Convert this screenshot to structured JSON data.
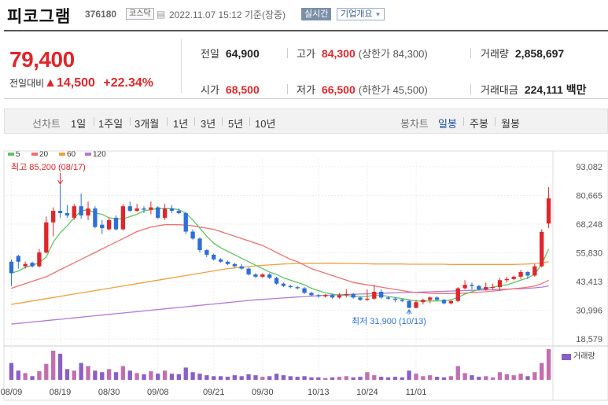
{
  "header": {
    "title": "피코그램",
    "code": "376180",
    "market": "코스닥",
    "datetime": "2022.11.07 15:12 기준(장중)",
    "realtime_btn": "실시간",
    "company_btn": "기업개요"
  },
  "summary": {
    "price": "79,400",
    "change_label": "전일대비",
    "change": "▲14,500",
    "change_pct": "+22.34%",
    "prev_close_label": "전일",
    "prev_close": "64,900",
    "high_label": "고가",
    "high": "84,300",
    "upper_limit": "(상한가 84,300)",
    "volume_label": "거래량",
    "volume": "2,858,697",
    "open_label": "시가",
    "open": "68,500",
    "low_label": "저가",
    "low": "66,500",
    "lower_limit": "(하한가 45,500)",
    "amount_label": "거래대금",
    "amount": "224,111 백만"
  },
  "periods": {
    "line_label": "선차트",
    "line_items": [
      "1일",
      "1주일",
      "3개월",
      "1년",
      "3년",
      "5년",
      "10년"
    ],
    "candle_label": "봉차트",
    "candle_items": [
      "일봉",
      "주봉",
      "월봉"
    ],
    "candle_selected": "일봉"
  },
  "colors": {
    "up": "#e0262b",
    "down": "#2f6fd6",
    "ma5": "#62c462",
    "ma20": "#f07070",
    "ma60": "#f0a040",
    "ma120": "#b07ad8"
  },
  "chart_data": {
    "type": "candlestick",
    "y_ticks": [
      "93,082",
      "80,665",
      "68,248",
      "55,830",
      "43,413",
      "30,996",
      "18,579"
    ],
    "ylim": [
      18579,
      93082
    ],
    "x_labels": [
      "08/09",
      "08/19",
      "08/30",
      "09/08",
      "09/21",
      "09/30",
      "10/13",
      "10/24",
      "11/01"
    ],
    "legend": [
      "5",
      "20",
      "60",
      "120"
    ],
    "volume_label": "거래량",
    "annotations": {
      "high": "최고 85,200 (08/17)",
      "low": "최저 31,900 (10/13)"
    },
    "candles": [
      [
        52000,
        47000,
        41500,
        53000
      ],
      [
        54500,
        52000,
        49000,
        55000
      ],
      [
        50000,
        51000,
        49000,
        52000
      ],
      [
        51500,
        50000,
        49500,
        52000
      ],
      [
        50000,
        56000,
        49500,
        57500
      ],
      [
        56000,
        69000,
        55500,
        71500
      ],
      [
        69000,
        74000,
        63000,
        75500
      ],
      [
        74000,
        73000,
        71000,
        85200
      ],
      [
        73000,
        72000,
        71000,
        76500
      ],
      [
        71000,
        76000,
        70000,
        77000
      ],
      [
        76000,
        72000,
        70500,
        81500
      ],
      [
        72000,
        75000,
        70000,
        78000
      ],
      [
        75000,
        67000,
        66500,
        76000
      ],
      [
        68000,
        66500,
        64000,
        70000
      ],
      [
        66000,
        70000,
        65500,
        71000
      ],
      [
        71000,
        66000,
        65500,
        72000
      ],
      [
        66000,
        76000,
        65500,
        77000
      ],
      [
        76000,
        74000,
        73500,
        78000
      ],
      [
        74000,
        75000,
        73500,
        77000
      ],
      [
        75000,
        74500,
        73000,
        76000
      ],
      [
        74500,
        75500,
        72500,
        78000
      ],
      [
        75500,
        71000,
        70500,
        76000
      ],
      [
        71000,
        75000,
        70000,
        77000
      ],
      [
        75000,
        74000,
        73000,
        76500
      ],
      [
        74000,
        73000,
        72500,
        75000
      ],
      [
        73000,
        65000,
        64000,
        73500
      ],
      [
        65000,
        62000,
        61500,
        66000
      ],
      [
        62000,
        57000,
        56000,
        62500
      ],
      [
        57000,
        55000,
        54000,
        57500
      ],
      [
        55000,
        53000,
        52500,
        55500
      ],
      [
        53000,
        52000,
        51500,
        53500
      ],
      [
        52000,
        51000,
        50500,
        52500
      ],
      [
        51000,
        50000,
        49500,
        51500
      ],
      [
        50000,
        49000,
        48500,
        51000
      ],
      [
        49000,
        46500,
        46000,
        49500
      ],
      [
        46500,
        45500,
        45000,
        47000
      ],
      [
        45500,
        46500,
        45000,
        47000
      ],
      [
        46500,
        45000,
        44500,
        47000
      ],
      [
        45000,
        42500,
        42000,
        45500
      ],
      [
        42500,
        41500,
        41000,
        43000
      ],
      [
        41500,
        41000,
        40500,
        42000
      ],
      [
        41000,
        40500,
        40000,
        41500
      ],
      [
        40500,
        38500,
        38000,
        41000
      ],
      [
        38500,
        37500,
        37000,
        39000
      ],
      [
        37500,
        37000,
        36500,
        38000
      ],
      [
        37000,
        37500,
        36500,
        38000
      ],
      [
        37500,
        36500,
        36000,
        38000
      ],
      [
        36500,
        37500,
        36000,
        38500
      ],
      [
        37500,
        38000,
        36500,
        40000
      ],
      [
        38000,
        36500,
        36000,
        38500
      ],
      [
        36500,
        35500,
        35000,
        37000
      ],
      [
        35500,
        36000,
        35000,
        40000
      ],
      [
        36000,
        39000,
        35500,
        42000
      ],
      [
        39000,
        36500,
        36000,
        40000
      ],
      [
        36500,
        36000,
        35500,
        37000
      ],
      [
        36000,
        35500,
        34500,
        36500
      ],
      [
        35500,
        35000,
        34500,
        36000
      ],
      [
        35000,
        32000,
        31900,
        35500
      ],
      [
        32000,
        34500,
        31900,
        35500
      ],
      [
        34500,
        35500,
        33500,
        36000
      ],
      [
        35500,
        36500,
        34000,
        37000
      ],
      [
        36500,
        35500,
        35000,
        37000
      ],
      [
        35500,
        34000,
        33500,
        36000
      ],
      [
        34000,
        35000,
        33500,
        35500
      ],
      [
        35000,
        40500,
        34500,
        41000
      ],
      [
        40500,
        42000,
        40000,
        44000
      ],
      [
        42000,
        41500,
        40000,
        43000
      ],
      [
        41500,
        40000,
        39500,
        42000
      ],
      [
        40000,
        41000,
        39500,
        43000
      ],
      [
        41000,
        41000,
        40000,
        42500
      ],
      [
        41000,
        44000,
        39500,
        45000
      ],
      [
        44000,
        44500,
        43000,
        45500
      ],
      [
        44500,
        45500,
        44000,
        46000
      ],
      [
        45500,
        47500,
        44500,
        48500
      ],
      [
        47500,
        46000,
        44500,
        48000
      ],
      [
        46000,
        50000,
        45500,
        51000
      ],
      [
        50000,
        64900,
        49500,
        66000
      ],
      [
        68500,
        79400,
        66500,
        84300
      ]
    ],
    "volumes": [
      0.55,
      0.3,
      0.22,
      0.12,
      0.28,
      0.52,
      0.95,
      0.85,
      0.35,
      0.3,
      0.55,
      0.45,
      0.3,
      0.25,
      0.35,
      0.25,
      0.45,
      0.3,
      0.22,
      0.18,
      0.28,
      0.2,
      0.3,
      0.2,
      0.18,
      0.4,
      0.25,
      0.2,
      0.15,
      0.12,
      0.12,
      0.1,
      0.15,
      0.12,
      0.18,
      0.15,
      0.1,
      0.12,
      0.2,
      0.15,
      0.12,
      0.1,
      0.12,
      0.08,
      0.08,
      0.06,
      0.08,
      0.1,
      0.12,
      0.08,
      0.1,
      0.25,
      0.15,
      0.1,
      0.08,
      0.1,
      0.08,
      0.3,
      0.2,
      0.12,
      0.15,
      0.1,
      0.08,
      0.12,
      0.45,
      0.22,
      0.15,
      0.1,
      0.12,
      0.08,
      0.25,
      0.18,
      0.15,
      0.2,
      0.12,
      0.25,
      0.55,
      1.0
    ],
    "ma5": [
      47000,
      48000,
      49500,
      50500,
      51500,
      54000,
      60500,
      64500,
      67500,
      71000,
      74000,
      74500,
      73000,
      72500,
      71000,
      70500,
      70500,
      71500,
      72500,
      74000,
      74500,
      75000,
      75000,
      75000,
      74500,
      73000,
      70000,
      66500,
      63000,
      60000,
      58000,
      56500,
      55000,
      53500,
      52000,
      50500,
      49000,
      47500,
      46500,
      45000,
      44000,
      43000,
      42000,
      40500,
      39500,
      38500,
      38000,
      37500,
      37500,
      37000,
      37000,
      37000,
      37500,
      37500,
      37000,
      36500,
      36000,
      35500,
      35000,
      35000,
      35000,
      35000,
      35000,
      35500,
      36500,
      38000,
      39000,
      40000,
      40500,
      41000,
      41500,
      42000,
      43000,
      44000,
      45000,
      46500,
      51000,
      57500
    ],
    "ma20": [
      40500,
      41500,
      42500,
      43500,
      44500,
      45500,
      47000,
      48500,
      50000,
      51500,
      53000,
      54500,
      56000,
      57500,
      59000,
      60500,
      62000,
      63500,
      65000,
      66000,
      67000,
      67500,
      68000,
      68000,
      68000,
      67800,
      67500,
      67000,
      66500,
      66000,
      65000,
      64000,
      63000,
      62000,
      61000,
      60000,
      59000,
      57500,
      56000,
      54500,
      53000,
      52000,
      50500,
      49000,
      48000,
      47000,
      46000,
      45000,
      44000,
      43000,
      42500,
      42000,
      41500,
      41000,
      40500,
      40000,
      39500,
      39000,
      38700,
      38500,
      38300,
      38200,
      38200,
      38200,
      38300,
      38400,
      38600,
      38800,
      39000,
      39300,
      39600,
      40000,
      40300,
      40600,
      41000,
      41500,
      42500,
      44000
    ],
    "ma60": [
      33500,
      34000,
      34500,
      35000,
      35500,
      36000,
      36500,
      37000,
      37500,
      38000,
      38500,
      39000,
      39500,
      40000,
      40500,
      41000,
      41500,
      42000,
      42500,
      43000,
      43500,
      44000,
      44500,
      45000,
      45500,
      46000,
      46500,
      47000,
      47500,
      48000,
      48500,
      49000,
      49300,
      49600,
      49900,
      50200,
      50400,
      50600,
      50800,
      51000,
      51100,
      51200,
      51300,
      51300,
      51300,
      51300,
      51300,
      51300,
      51200,
      51200,
      51100,
      51100,
      51000,
      51000,
      51000,
      51000,
      51000,
      50900,
      50900,
      50900,
      50900,
      50900,
      50900,
      50800,
      50800,
      50800,
      50800,
      50800,
      50800,
      50800,
      50800,
      50800,
      50800,
      50900,
      51000,
      51200,
      51500,
      52000
    ],
    "ma120": [
      25000,
      25300,
      25600,
      25900,
      26200,
      26500,
      26800,
      27100,
      27400,
      27700,
      28000,
      28300,
      28600,
      28900,
      29200,
      29500,
      29800,
      30100,
      30400,
      30700,
      31000,
      31300,
      31600,
      31900,
      32200,
      32500,
      32800,
      33100,
      33400,
      33700,
      34000,
      34300,
      34600,
      34900,
      35200,
      35500,
      35700,
      35900,
      36100,
      36300,
      36500,
      36700,
      36900,
      37100,
      37300,
      37500,
      37600,
      37700,
      37800,
      37900,
      38000,
      38100,
      38200,
      38300,
      38400,
      38500,
      38600,
      38700,
      38800,
      38900,
      39000,
      39100,
      39200,
      39300,
      39400,
      39500,
      39600,
      39700,
      39800,
      39900,
      40000,
      40100,
      40200,
      40300,
      40500,
      40700,
      41000,
      41500
    ]
  }
}
